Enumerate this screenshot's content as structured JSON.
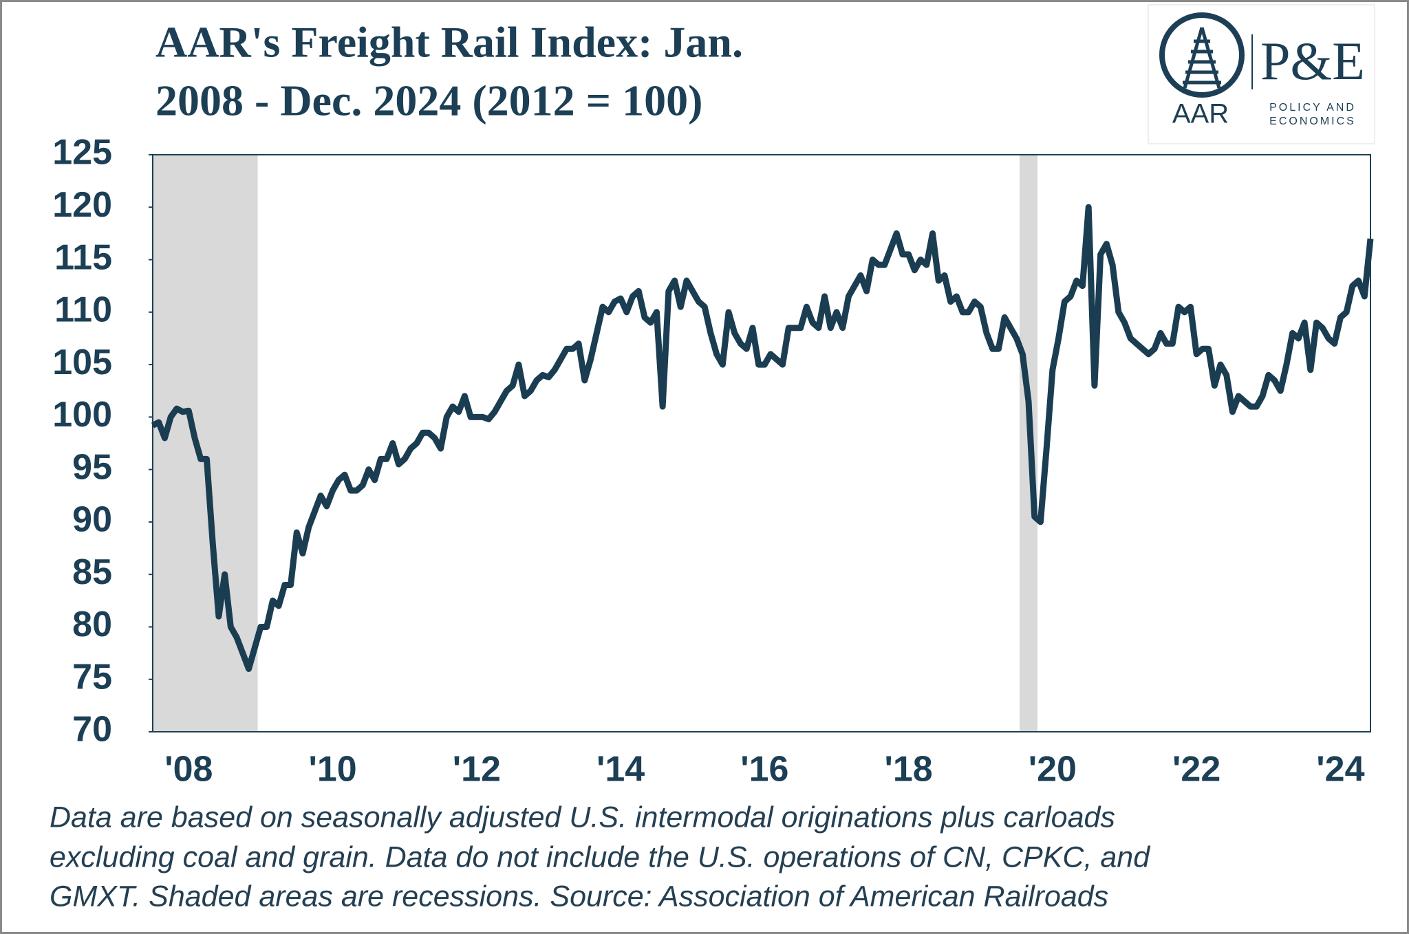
{
  "chart_data": {
    "type": "line",
    "title_lines": [
      "AAR's Freight Rail Index: Jan.",
      "2008 - Dec. 2024 (2012 = 100)"
    ],
    "categories": [
      null,
      null,
      null,
      null,
      null,
      null,
      "'08",
      null,
      null,
      null,
      null,
      null,
      null,
      null,
      null,
      null,
      null,
      null,
      null,
      null,
      null,
      null,
      null,
      null,
      null,
      null,
      null,
      null,
      null,
      null,
      "'10",
      null,
      null,
      null,
      null,
      null,
      null,
      null,
      null,
      null,
      null,
      null,
      null,
      null,
      null,
      null,
      null,
      null,
      null,
      null,
      null,
      null,
      null,
      null,
      "'12",
      null,
      null,
      null,
      null,
      null,
      null,
      null,
      null,
      null,
      null,
      null,
      null,
      null,
      null,
      null,
      null,
      null,
      null,
      null,
      null,
      null,
      null,
      null,
      "'14",
      null,
      null,
      null,
      null,
      null,
      null,
      null,
      null,
      null,
      null,
      null,
      null,
      null,
      null,
      null,
      null,
      null,
      null,
      null,
      null,
      null,
      null,
      null,
      "'16",
      null,
      null,
      null,
      null,
      null,
      null,
      null,
      null,
      null,
      null,
      null,
      null,
      null,
      null,
      null,
      null,
      null,
      null,
      null,
      null,
      null,
      null,
      null,
      "'18",
      null,
      null,
      null,
      null,
      null,
      null,
      null,
      null,
      null,
      null,
      null,
      null,
      null,
      null,
      null,
      null,
      null,
      null,
      null,
      null,
      null,
      null,
      null,
      "'20",
      null,
      null,
      null,
      null,
      null,
      null,
      null,
      null,
      null,
      null,
      null,
      null,
      null,
      null,
      null,
      null,
      null,
      null,
      null,
      null,
      null,
      null,
      null,
      "'22",
      null,
      null,
      null,
      null,
      null,
      null,
      null,
      null,
      null,
      null,
      null,
      null,
      null,
      null,
      null,
      null,
      null,
      null,
      null,
      null,
      null,
      null,
      null,
      "'24",
      null,
      null,
      null,
      null,
      null
    ],
    "values": [
      99.2,
      99.5,
      98,
      100,
      100.8,
      100.5,
      100.6,
      98,
      96,
      96,
      88,
      81,
      85,
      80,
      79,
      77.5,
      76,
      78,
      80,
      80,
      82.5,
      82,
      84,
      84,
      89,
      87,
      89.5,
      91,
      92.5,
      91.5,
      93,
      94,
      94.5,
      93,
      93,
      93.5,
      95,
      94,
      96,
      96,
      97.5,
      95.5,
      96,
      97,
      97.5,
      98.5,
      98.5,
      98,
      97,
      100,
      101,
      100.5,
      102,
      100,
      100,
      100,
      99.8,
      100.5,
      101.5,
      102.5,
      103,
      105,
      102,
      102.5,
      103.5,
      104,
      103.8,
      104.5,
      105.5,
      106.5,
      106.5,
      107,
      103.5,
      105.5,
      108,
      110.5,
      110,
      111,
      111.3,
      110,
      111.5,
      112,
      109.5,
      109,
      110,
      101,
      112,
      113,
      110.5,
      113,
      112,
      111,
      110.5,
      108,
      106,
      105,
      110,
      108,
      107,
      106.5,
      108.5,
      105,
      105,
      106,
      105.5,
      105,
      108.5,
      108.5,
      108.5,
      110.5,
      109,
      108.5,
      111.5,
      108.5,
      110,
      108.5,
      111.5,
      112.5,
      113.5,
      112,
      115,
      114.5,
      114.5,
      116,
      117.5,
      115.5,
      115.5,
      114,
      115,
      114.5,
      117.5,
      113,
      113.5,
      111,
      111.5,
      110,
      110,
      111,
      110.5,
      108,
      106.5,
      106.5,
      109.5,
      108.5,
      107.5,
      106,
      101.5,
      90.5,
      90,
      97,
      104.5,
      107.5,
      111,
      111.5,
      113,
      112.5,
      120,
      103,
      115.5,
      116.5,
      114.5,
      110,
      109,
      107.5,
      107,
      106.5,
      106,
      106.5,
      108,
      107,
      107,
      110.5,
      110,
      110.5,
      106,
      106.5,
      106.5,
      103,
      105,
      104,
      100.5,
      102,
      101.5,
      101,
      101,
      102,
      104,
      103.5,
      102.5,
      105,
      108,
      107.5,
      109,
      104.5,
      109,
      108.5,
      107.5,
      107,
      109.5,
      110,
      112.5,
      113,
      111.5,
      117
    ],
    "color": "#1b3d52",
    "shaded": [
      {
        "from": 0,
        "to": 17
      },
      {
        "from": 145,
        "to": 147
      }
    ],
    "shade_color": "#d9d9d9",
    "ylim": [
      70,
      125
    ],
    "yticks": [
      70,
      75,
      80,
      85,
      90,
      95,
      100,
      105,
      110,
      115,
      120,
      125
    ],
    "footnote_lines": [
      "Data are based on seasonally adjusted U.S. intermodal originations plus carloads",
      "excluding coal and grain. Data do not include the U.S. operations of CN, CPKC, and",
      "GMXT. Shaded areas are recessions. Source: Association of American Railroads"
    ],
    "logo": {
      "left": "AAR",
      "right": "P&E",
      "right_sub": [
        "POLICY AND",
        "ECONOMICS"
      ]
    }
  }
}
